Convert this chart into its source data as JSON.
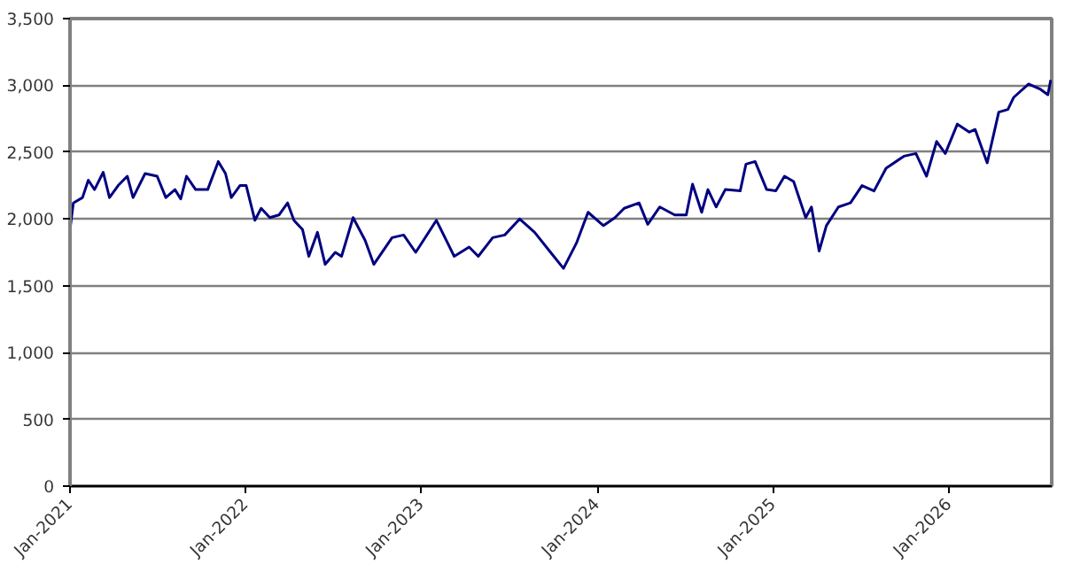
{
  "chart_data": {
    "type": "line",
    "x": [
      "2021-01-02",
      "2021-01-08",
      "2021-01-27",
      "2021-02-08",
      "2021-02-21",
      "2021-03-11",
      "2021-03-24",
      "2021-04-11",
      "2021-04-30",
      "2021-05-12",
      "2021-06-06",
      "2021-07-01",
      "2021-07-19",
      "2021-08-07",
      "2021-08-19",
      "2021-08-31",
      "2021-09-19",
      "2021-10-14",
      "2021-11-05",
      "2021-11-20",
      "2021-12-02",
      "2021-12-20",
      "2022-01-02",
      "2022-01-20",
      "2022-02-02",
      "2022-02-20",
      "2022-03-11",
      "2022-03-29",
      "2022-04-11",
      "2022-04-29",
      "2022-05-12",
      "2022-05-30",
      "2022-06-15",
      "2022-07-06",
      "2022-07-19",
      "2022-08-12",
      "2022-09-06",
      "2022-09-24",
      "2022-11-01",
      "2022-11-25",
      "2022-12-20",
      "2023-02-01",
      "2023-03-10",
      "2023-04-10",
      "2023-04-29",
      "2023-05-29",
      "2023-06-23",
      "2023-07-24",
      "2023-08-24",
      "2023-09-24",
      "2023-10-23",
      "2023-11-19",
      "2023-12-13",
      "2024-01-14",
      "2024-02-07",
      "2024-02-26",
      "2024-03-28",
      "2024-04-15",
      "2024-05-10",
      "2024-06-10",
      "2024-07-04",
      "2024-07-17",
      "2024-08-05",
      "2024-08-18",
      "2024-09-04",
      "2024-09-23",
      "2024-10-24",
      "2024-11-05",
      "2024-11-24",
      "2024-12-18",
      "2025-01-06",
      "2025-01-24",
      "2025-02-12",
      "2025-03-09",
      "2025-03-21",
      "2025-04-06",
      "2025-04-21",
      "2025-05-16",
      "2025-06-10",
      "2025-07-04",
      "2025-07-29",
      "2025-08-23",
      "2025-09-29",
      "2025-10-24",
      "2025-11-15",
      "2025-12-06",
      "2025-12-24",
      "2026-01-18",
      "2026-02-12",
      "2026-02-24",
      "2026-03-21",
      "2026-04-14",
      "2026-05-03",
      "2026-05-15",
      "2026-06-15",
      "2026-07-10",
      "2026-07-25",
      "2026-07-31"
    ],
    "series": [
      {
        "color": "#000080",
        "values": [
          1950,
          2120,
          2160,
          2290,
          2220,
          2350,
          2160,
          2250,
          2320,
          2160,
          2340,
          2320,
          2160,
          2220,
          2150,
          2320,
          2220,
          2220,
          2430,
          2340,
          2160,
          2250,
          2250,
          1990,
          2080,
          2010,
          2030,
          2120,
          1990,
          1920,
          1720,
          1900,
          1660,
          1750,
          1720,
          2010,
          1840,
          1660,
          1860,
          1880,
          1750,
          1990,
          1720,
          1790,
          1720,
          1860,
          1880,
          2000,
          1900,
          1760,
          1630,
          1820,
          2050,
          1950,
          2010,
          2080,
          2120,
          1960,
          2090,
          2030,
          2030,
          2260,
          2050,
          2220,
          2090,
          2220,
          2210,
          2410,
          2430,
          2220,
          2210,
          2320,
          2280,
          2010,
          2090,
          1760,
          1950,
          2090,
          2120,
          2250,
          2210,
          2380,
          2470,
          2490,
          2320,
          2580,
          2490,
          2710,
          2650,
          2670,
          2420,
          2800,
          2820,
          2910,
          3010,
          2970,
          2930,
          3040
        ]
      }
    ],
    "xlim": [
      "2021-01-01",
      "2026-08-02"
    ],
    "xticks": [
      {
        "value": "2021-01-01",
        "label": "Jan-2021"
      },
      {
        "value": "2022-01-01",
        "label": "Jan-2022"
      },
      {
        "value": "2023-01-01",
        "label": "Jan-2023"
      },
      {
        "value": "2024-01-01",
        "label": "Jan-2024"
      },
      {
        "value": "2025-01-01",
        "label": "Jan-2025"
      },
      {
        "value": "2026-01-01",
        "label": "Jan-2026"
      }
    ],
    "ylim": [
      0,
      3500
    ],
    "yticks": [
      {
        "value": 0,
        "label": "0"
      },
      {
        "value": 500,
        "label": "500"
      },
      {
        "value": 1000,
        "label": "1,000"
      },
      {
        "value": 1500,
        "label": "1,500"
      },
      {
        "value": 2000,
        "label": "2,000"
      },
      {
        "value": 2500,
        "label": "2,500"
      },
      {
        "value": 3000,
        "label": "3,000"
      },
      {
        "value": 3500,
        "label": "3,500"
      }
    ],
    "grid": "y",
    "marker": "none",
    "line_style": "solid"
  }
}
